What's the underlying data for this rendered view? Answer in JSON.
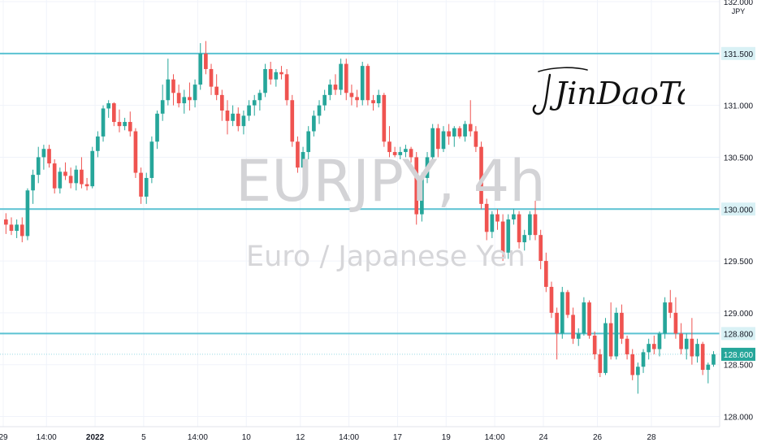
{
  "watermark": {
    "symbol_title": "EURJPY, 4h",
    "description": "Euro / Japanese Yen"
  },
  "signature": "JinDaoTai",
  "colors": {
    "up": "#26a69a",
    "down": "#ef5350",
    "level_line": "#5bc2d2",
    "price_badge": "#26a69a",
    "grid": "#f0f3fa",
    "axis_text": "#131722"
  },
  "chart_data": {
    "type": "candlestick",
    "symbol": "EURJPY",
    "timeframe": "4h",
    "currency_label": "JPY",
    "ylim": [
      127.95,
      132.03
    ],
    "y_ticks": [
      "132.000",
      "131.000",
      "130.500",
      "129.500",
      "129.000",
      "128.500",
      "128.000"
    ],
    "x_ticks": [
      {
        "label": "29",
        "bar": 0
      },
      {
        "label": "14:00",
        "bar": 8
      },
      {
        "label": "2022",
        "bar": 17
      },
      {
        "label": "5",
        "bar": 26
      },
      {
        "label": "14:00",
        "bar": 36
      },
      {
        "label": "10",
        "bar": 45
      },
      {
        "label": "12",
        "bar": 55
      },
      {
        "label": "14:00",
        "bar": 64
      },
      {
        "label": "17",
        "bar": 73
      },
      {
        "label": "19",
        "bar": 82
      },
      {
        "label": "14:00",
        "bar": 91
      },
      {
        "label": "24",
        "bar": 100
      },
      {
        "label": "26",
        "bar": 110
      },
      {
        "label": "28",
        "bar": 120
      }
    ],
    "levels": [
      {
        "label": "131.500",
        "value": 131.5
      },
      {
        "label": "130.000",
        "value": 130.0
      },
      {
        "label": "128.800",
        "value": 128.8
      }
    ],
    "current_price": {
      "label": "128.600",
      "value": 128.6
    },
    "ohlc": [
      [
        129.9,
        129.96,
        129.76,
        129.85
      ],
      [
        129.85,
        129.92,
        129.75,
        129.79
      ],
      [
        129.79,
        129.9,
        129.72,
        129.85
      ],
      [
        129.85,
        129.92,
        129.68,
        129.74
      ],
      [
        129.74,
        130.2,
        129.7,
        130.18
      ],
      [
        130.18,
        130.38,
        130.05,
        130.33
      ],
      [
        130.33,
        130.6,
        130.25,
        130.5
      ],
      [
        130.5,
        130.62,
        130.38,
        130.58
      ],
      [
        130.58,
        130.62,
        130.4,
        130.44
      ],
      [
        130.44,
        130.48,
        130.15,
        130.2
      ],
      [
        130.2,
        130.4,
        130.15,
        130.36
      ],
      [
        130.36,
        130.45,
        130.28,
        130.32
      ],
      [
        130.32,
        130.4,
        130.2,
        130.25
      ],
      [
        130.25,
        130.42,
        130.18,
        130.38
      ],
      [
        130.38,
        130.5,
        130.2,
        130.24
      ],
      [
        130.24,
        130.3,
        130.18,
        130.22
      ],
      [
        130.22,
        130.6,
        130.2,
        130.56
      ],
      [
        130.56,
        130.75,
        130.5,
        130.7
      ],
      [
        130.7,
        131.0,
        130.65,
        130.97
      ],
      [
        130.97,
        131.05,
        130.88,
        131.02
      ],
      [
        131.02,
        131.03,
        130.8,
        130.84
      ],
      [
        130.84,
        130.96,
        130.74,
        130.8
      ],
      [
        130.8,
        130.88,
        130.76,
        130.84
      ],
      [
        130.84,
        130.94,
        130.7,
        130.75
      ],
      [
        130.75,
        130.78,
        130.3,
        130.35
      ],
      [
        130.35,
        130.4,
        130.05,
        130.12
      ],
      [
        130.12,
        130.35,
        130.05,
        130.3
      ],
      [
        130.3,
        130.7,
        130.25,
        130.65
      ],
      [
        130.65,
        130.95,
        130.58,
        130.92
      ],
      [
        130.92,
        131.2,
        130.85,
        131.05
      ],
      [
        131.05,
        131.45,
        131.0,
        131.25
      ],
      [
        131.25,
        131.3,
        131.0,
        131.12
      ],
      [
        131.12,
        131.2,
        130.98,
        131.02
      ],
      [
        131.02,
        131.15,
        130.92,
        131.08
      ],
      [
        131.08,
        131.22,
        130.95,
        131.05
      ],
      [
        131.05,
        131.25,
        130.98,
        131.2
      ],
      [
        131.2,
        131.6,
        131.15,
        131.5
      ],
      [
        131.5,
        131.62,
        131.3,
        131.35
      ],
      [
        131.35,
        131.4,
        131.1,
        131.18
      ],
      [
        131.18,
        131.3,
        131.05,
        131.1
      ],
      [
        131.1,
        131.15,
        130.85,
        130.95
      ],
      [
        130.95,
        131.05,
        130.72,
        130.85
      ],
      [
        130.85,
        131.0,
        130.8,
        130.92
      ],
      [
        130.92,
        130.98,
        130.75,
        130.8
      ],
      [
        130.8,
        130.95,
        130.72,
        130.9
      ],
      [
        130.9,
        131.05,
        130.85,
        131.0
      ],
      [
        131.0,
        131.1,
        130.9,
        131.05
      ],
      [
        131.05,
        131.15,
        130.95,
        131.12
      ],
      [
        131.12,
        131.4,
        131.08,
        131.35
      ],
      [
        131.35,
        131.42,
        131.2,
        131.25
      ],
      [
        131.25,
        131.35,
        131.18,
        131.32
      ],
      [
        131.32,
        131.38,
        131.25,
        131.3
      ],
      [
        131.3,
        131.35,
        131.0,
        131.05
      ],
      [
        131.05,
        131.1,
        130.6,
        130.65
      ],
      [
        130.65,
        130.7,
        130.35,
        130.4
      ],
      [
        130.4,
        130.6,
        130.35,
        130.55
      ],
      [
        130.55,
        130.8,
        130.48,
        130.75
      ],
      [
        130.75,
        130.95,
        130.7,
        130.9
      ],
      [
        130.9,
        131.05,
        130.82,
        131.0
      ],
      [
        131.0,
        131.15,
        130.95,
        131.1
      ],
      [
        131.1,
        131.25,
        131.05,
        131.2
      ],
      [
        131.2,
        131.3,
        131.1,
        131.15
      ],
      [
        131.15,
        131.45,
        131.1,
        131.4
      ],
      [
        131.4,
        131.45,
        131.05,
        131.12
      ],
      [
        131.12,
        131.2,
        131.0,
        131.08
      ],
      [
        131.08,
        131.15,
        130.98,
        131.05
      ],
      [
        131.05,
        131.42,
        131.0,
        131.38
      ],
      [
        131.38,
        131.4,
        131.0,
        131.05
      ],
      [
        131.05,
        131.1,
        130.95,
        131.02
      ],
      [
        131.02,
        131.15,
        130.98,
        131.1
      ],
      [
        131.1,
        131.12,
        130.6,
        130.65
      ],
      [
        130.65,
        130.8,
        130.5,
        130.55
      ],
      [
        130.55,
        130.6,
        130.5,
        130.52
      ],
      [
        130.52,
        130.6,
        130.48,
        130.55
      ],
      [
        130.55,
        130.62,
        130.5,
        130.58
      ],
      [
        130.58,
        130.6,
        130.45,
        130.5
      ],
      [
        130.5,
        130.55,
        129.85,
        129.95
      ],
      [
        129.95,
        130.35,
        129.88,
        130.3
      ],
      [
        130.3,
        130.55,
        130.25,
        130.5
      ],
      [
        130.5,
        130.82,
        130.45,
        130.78
      ],
      [
        130.78,
        130.82,
        130.5,
        130.58
      ],
      [
        130.58,
        130.8,
        130.55,
        130.75
      ],
      [
        130.75,
        130.82,
        130.62,
        130.7
      ],
      [
        130.7,
        130.8,
        130.6,
        130.78
      ],
      [
        130.78,
        130.8,
        130.68,
        130.7
      ],
      [
        130.7,
        130.85,
        130.65,
        130.82
      ],
      [
        130.82,
        131.05,
        130.7,
        130.75
      ],
      [
        130.75,
        130.8,
        130.55,
        130.6
      ],
      [
        130.6,
        130.65,
        130.0,
        130.05
      ],
      [
        130.05,
        130.1,
        129.7,
        129.78
      ],
      [
        129.78,
        129.98,
        129.72,
        129.95
      ],
      [
        129.95,
        130.0,
        129.8,
        129.88
      ],
      [
        129.88,
        129.95,
        129.5,
        129.58
      ],
      [
        129.58,
        129.95,
        129.52,
        129.9
      ],
      [
        129.9,
        130.0,
        129.85,
        129.95
      ],
      [
        129.95,
        129.98,
        129.62,
        129.68
      ],
      [
        129.68,
        129.8,
        129.6,
        129.75
      ],
      [
        129.75,
        129.98,
        129.7,
        129.95
      ],
      [
        129.95,
        130.08,
        129.7,
        129.75
      ],
      [
        129.75,
        129.8,
        129.42,
        129.5
      ],
      [
        129.5,
        129.58,
        129.2,
        129.25
      ],
      [
        129.25,
        129.3,
        128.95,
        129.0
      ],
      [
        129.0,
        129.05,
        128.55,
        128.8
      ],
      [
        128.8,
        129.25,
        128.75,
        129.2
      ],
      [
        129.2,
        129.22,
        128.95,
        128.98
      ],
      [
        128.98,
        129.05,
        128.7,
        128.75
      ],
      [
        128.75,
        128.85,
        128.68,
        128.8
      ],
      [
        128.8,
        129.15,
        128.78,
        129.1
      ],
      [
        129.1,
        129.12,
        128.75,
        128.78
      ],
      [
        128.78,
        128.82,
        128.55,
        128.6
      ],
      [
        128.6,
        128.65,
        128.38,
        128.42
      ],
      [
        128.42,
        128.95,
        128.4,
        128.9
      ],
      [
        128.9,
        129.1,
        128.55,
        128.58
      ],
      [
        128.58,
        129.05,
        128.55,
        129.0
      ],
      [
        129.0,
        129.08,
        128.7,
        128.75
      ],
      [
        128.75,
        128.78,
        128.55,
        128.6
      ],
      [
        128.6,
        128.65,
        128.35,
        128.4
      ],
      [
        128.4,
        128.52,
        128.22,
        128.48
      ],
      [
        128.48,
        128.65,
        128.42,
        128.62
      ],
      [
        128.62,
        128.75,
        128.55,
        128.7
      ],
      [
        128.7,
        128.78,
        128.6,
        128.65
      ],
      [
        128.65,
        128.82,
        128.58,
        128.8
      ],
      [
        128.8,
        129.15,
        128.75,
        129.1
      ],
      [
        129.1,
        129.22,
        128.95,
        129.0
      ],
      [
        129.0,
        129.15,
        128.75,
        128.8
      ],
      [
        128.8,
        128.9,
        128.6,
        128.65
      ],
      [
        128.65,
        128.8,
        128.55,
        128.75
      ],
      [
        128.75,
        128.95,
        128.5,
        128.58
      ],
      [
        128.58,
        128.75,
        128.52,
        128.7
      ],
      [
        128.7,
        128.72,
        128.4,
        128.45
      ],
      [
        128.45,
        128.52,
        128.32,
        128.5
      ],
      [
        128.5,
        128.63,
        128.48,
        128.6
      ]
    ]
  }
}
